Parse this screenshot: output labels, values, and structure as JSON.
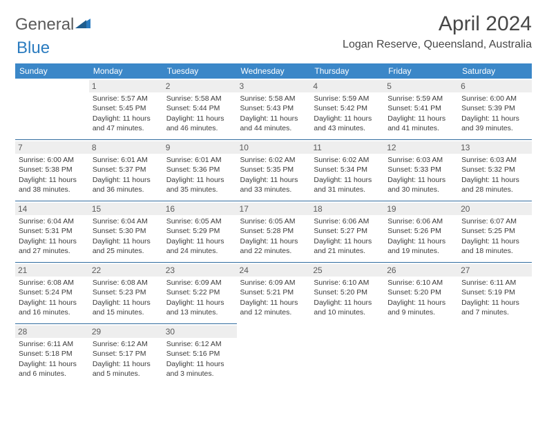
{
  "brand": {
    "name1": "General",
    "name2": "Blue",
    "triangle_color": "#2a7bbf"
  },
  "title": "April 2024",
  "location": "Logan Reserve, Queensland, Australia",
  "header_bg": "#3b87c8",
  "border_color": "#2f6a9e",
  "dayHeaders": [
    "Sunday",
    "Monday",
    "Tuesday",
    "Wednesday",
    "Thursday",
    "Friday",
    "Saturday"
  ],
  "weeks": [
    [
      {
        "day": "",
        "sunrise": "",
        "sunset": "",
        "daylight": ""
      },
      {
        "day": "1",
        "sunrise": "Sunrise: 5:57 AM",
        "sunset": "Sunset: 5:45 PM",
        "daylight": "Daylight: 11 hours and 47 minutes."
      },
      {
        "day": "2",
        "sunrise": "Sunrise: 5:58 AM",
        "sunset": "Sunset: 5:44 PM",
        "daylight": "Daylight: 11 hours and 46 minutes."
      },
      {
        "day": "3",
        "sunrise": "Sunrise: 5:58 AM",
        "sunset": "Sunset: 5:43 PM",
        "daylight": "Daylight: 11 hours and 44 minutes."
      },
      {
        "day": "4",
        "sunrise": "Sunrise: 5:59 AM",
        "sunset": "Sunset: 5:42 PM",
        "daylight": "Daylight: 11 hours and 43 minutes."
      },
      {
        "day": "5",
        "sunrise": "Sunrise: 5:59 AM",
        "sunset": "Sunset: 5:41 PM",
        "daylight": "Daylight: 11 hours and 41 minutes."
      },
      {
        "day": "6",
        "sunrise": "Sunrise: 6:00 AM",
        "sunset": "Sunset: 5:39 PM",
        "daylight": "Daylight: 11 hours and 39 minutes."
      }
    ],
    [
      {
        "day": "7",
        "sunrise": "Sunrise: 6:00 AM",
        "sunset": "Sunset: 5:38 PM",
        "daylight": "Daylight: 11 hours and 38 minutes."
      },
      {
        "day": "8",
        "sunrise": "Sunrise: 6:01 AM",
        "sunset": "Sunset: 5:37 PM",
        "daylight": "Daylight: 11 hours and 36 minutes."
      },
      {
        "day": "9",
        "sunrise": "Sunrise: 6:01 AM",
        "sunset": "Sunset: 5:36 PM",
        "daylight": "Daylight: 11 hours and 35 minutes."
      },
      {
        "day": "10",
        "sunrise": "Sunrise: 6:02 AM",
        "sunset": "Sunset: 5:35 PM",
        "daylight": "Daylight: 11 hours and 33 minutes."
      },
      {
        "day": "11",
        "sunrise": "Sunrise: 6:02 AM",
        "sunset": "Sunset: 5:34 PM",
        "daylight": "Daylight: 11 hours and 31 minutes."
      },
      {
        "day": "12",
        "sunrise": "Sunrise: 6:03 AM",
        "sunset": "Sunset: 5:33 PM",
        "daylight": "Daylight: 11 hours and 30 minutes."
      },
      {
        "day": "13",
        "sunrise": "Sunrise: 6:03 AM",
        "sunset": "Sunset: 5:32 PM",
        "daylight": "Daylight: 11 hours and 28 minutes."
      }
    ],
    [
      {
        "day": "14",
        "sunrise": "Sunrise: 6:04 AM",
        "sunset": "Sunset: 5:31 PM",
        "daylight": "Daylight: 11 hours and 27 minutes."
      },
      {
        "day": "15",
        "sunrise": "Sunrise: 6:04 AM",
        "sunset": "Sunset: 5:30 PM",
        "daylight": "Daylight: 11 hours and 25 minutes."
      },
      {
        "day": "16",
        "sunrise": "Sunrise: 6:05 AM",
        "sunset": "Sunset: 5:29 PM",
        "daylight": "Daylight: 11 hours and 24 minutes."
      },
      {
        "day": "17",
        "sunrise": "Sunrise: 6:05 AM",
        "sunset": "Sunset: 5:28 PM",
        "daylight": "Daylight: 11 hours and 22 minutes."
      },
      {
        "day": "18",
        "sunrise": "Sunrise: 6:06 AM",
        "sunset": "Sunset: 5:27 PM",
        "daylight": "Daylight: 11 hours and 21 minutes."
      },
      {
        "day": "19",
        "sunrise": "Sunrise: 6:06 AM",
        "sunset": "Sunset: 5:26 PM",
        "daylight": "Daylight: 11 hours and 19 minutes."
      },
      {
        "day": "20",
        "sunrise": "Sunrise: 6:07 AM",
        "sunset": "Sunset: 5:25 PM",
        "daylight": "Daylight: 11 hours and 18 minutes."
      }
    ],
    [
      {
        "day": "21",
        "sunrise": "Sunrise: 6:08 AM",
        "sunset": "Sunset: 5:24 PM",
        "daylight": "Daylight: 11 hours and 16 minutes."
      },
      {
        "day": "22",
        "sunrise": "Sunrise: 6:08 AM",
        "sunset": "Sunset: 5:23 PM",
        "daylight": "Daylight: 11 hours and 15 minutes."
      },
      {
        "day": "23",
        "sunrise": "Sunrise: 6:09 AM",
        "sunset": "Sunset: 5:22 PM",
        "daylight": "Daylight: 11 hours and 13 minutes."
      },
      {
        "day": "24",
        "sunrise": "Sunrise: 6:09 AM",
        "sunset": "Sunset: 5:21 PM",
        "daylight": "Daylight: 11 hours and 12 minutes."
      },
      {
        "day": "25",
        "sunrise": "Sunrise: 6:10 AM",
        "sunset": "Sunset: 5:20 PM",
        "daylight": "Daylight: 11 hours and 10 minutes."
      },
      {
        "day": "26",
        "sunrise": "Sunrise: 6:10 AM",
        "sunset": "Sunset: 5:20 PM",
        "daylight": "Daylight: 11 hours and 9 minutes."
      },
      {
        "day": "27",
        "sunrise": "Sunrise: 6:11 AM",
        "sunset": "Sunset: 5:19 PM",
        "daylight": "Daylight: 11 hours and 7 minutes."
      }
    ],
    [
      {
        "day": "28",
        "sunrise": "Sunrise: 6:11 AM",
        "sunset": "Sunset: 5:18 PM",
        "daylight": "Daylight: 11 hours and 6 minutes."
      },
      {
        "day": "29",
        "sunrise": "Sunrise: 6:12 AM",
        "sunset": "Sunset: 5:17 PM",
        "daylight": "Daylight: 11 hours and 5 minutes."
      },
      {
        "day": "30",
        "sunrise": "Sunrise: 6:12 AM",
        "sunset": "Sunset: 5:16 PM",
        "daylight": "Daylight: 11 hours and 3 minutes."
      },
      {
        "day": "",
        "sunrise": "",
        "sunset": "",
        "daylight": ""
      },
      {
        "day": "",
        "sunrise": "",
        "sunset": "",
        "daylight": ""
      },
      {
        "day": "",
        "sunrise": "",
        "sunset": "",
        "daylight": ""
      },
      {
        "day": "",
        "sunrise": "",
        "sunset": "",
        "daylight": ""
      }
    ]
  ]
}
